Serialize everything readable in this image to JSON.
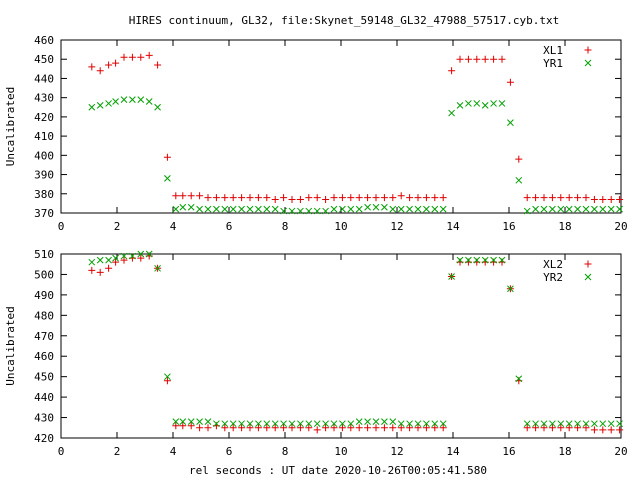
{
  "title": "HIRES continuum, GL32, file:Skynet_59148_GL32_47988_57517.cyb.txt",
  "xlabel": "rel seconds : UT date 2020-10-26T00:05:41.580",
  "colors": {
    "series1": "#e00000",
    "series2": "#00a000",
    "axis": "#000000"
  },
  "chart_data": [
    {
      "type": "scatter",
      "ylabel": "Uncalibrated",
      "xlim": [
        0,
        20
      ],
      "ylim": [
        370,
        460
      ],
      "xticks": [
        0,
        2,
        4,
        6,
        8,
        10,
        12,
        14,
        16,
        18,
        20
      ],
      "yticks": [
        370,
        380,
        390,
        400,
        410,
        420,
        430,
        440,
        450,
        460
      ],
      "legend_position": "top-right",
      "grid": false,
      "series": [
        {
          "name": "XL1",
          "marker": "+",
          "x": [
            1.1,
            1.4,
            1.7,
            1.95,
            2.25,
            2.55,
            2.85,
            3.15,
            3.45,
            3.8,
            4.1,
            4.35,
            4.65,
            4.95,
            5.25,
            5.55,
            5.85,
            6.15,
            6.45,
            6.75,
            7.05,
            7.35,
            7.65,
            7.95,
            8.25,
            8.55,
            8.85,
            9.15,
            9.45,
            9.75,
            10.05,
            10.35,
            10.65,
            10.95,
            11.25,
            11.55,
            11.85,
            12.15,
            12.45,
            12.75,
            13.05,
            13.35,
            13.65,
            13.95,
            14.25,
            14.55,
            14.85,
            15.15,
            15.45,
            15.75,
            16.05,
            16.35,
            16.65,
            16.95,
            17.25,
            17.55,
            17.85,
            18.15,
            18.45,
            18.75,
            19.05,
            19.35,
            19.65,
            19.95
          ],
          "y": [
            446,
            444,
            447,
            448,
            451,
            451,
            451,
            452,
            447,
            399,
            379,
            379,
            379,
            379,
            378,
            378,
            378,
            378,
            378,
            378,
            378,
            378,
            377,
            378,
            377,
            377,
            378,
            378,
            377,
            378,
            378,
            378,
            378,
            378,
            378,
            378,
            378,
            379,
            378,
            378,
            378,
            378,
            378,
            444,
            450,
            450,
            450,
            450,
            450,
            450,
            438,
            398,
            378,
            378,
            378,
            378,
            378,
            378,
            378,
            378,
            377,
            377,
            377,
            377
          ]
        },
        {
          "name": "YR1",
          "marker": "x",
          "x": [
            1.1,
            1.4,
            1.7,
            1.95,
            2.25,
            2.55,
            2.85,
            3.15,
            3.45,
            3.8,
            4.1,
            4.35,
            4.65,
            4.95,
            5.25,
            5.55,
            5.85,
            6.15,
            6.45,
            6.75,
            7.05,
            7.35,
            7.65,
            7.95,
            8.25,
            8.55,
            8.85,
            9.15,
            9.45,
            9.75,
            10.05,
            10.35,
            10.65,
            10.95,
            11.25,
            11.55,
            11.85,
            12.15,
            12.45,
            12.75,
            13.05,
            13.35,
            13.65,
            13.95,
            14.25,
            14.55,
            14.85,
            15.15,
            15.45,
            15.75,
            16.05,
            16.35,
            16.65,
            16.95,
            17.25,
            17.55,
            17.85,
            18.15,
            18.45,
            18.75,
            19.05,
            19.35,
            19.65,
            19.95
          ],
          "y": [
            425,
            426,
            427,
            428,
            429,
            429,
            429,
            428,
            425,
            388,
            372,
            373,
            373,
            372,
            372,
            372,
            372,
            372,
            372,
            372,
            372,
            372,
            372,
            371,
            371,
            371,
            371,
            371,
            371,
            372,
            372,
            372,
            372,
            373,
            373,
            373,
            372,
            372,
            372,
            372,
            372,
            372,
            372,
            422,
            426,
            427,
            427,
            426,
            427,
            427,
            417,
            387,
            371,
            372,
            372,
            372,
            372,
            372,
            372,
            372,
            372,
            372,
            372,
            372
          ]
        }
      ]
    },
    {
      "type": "scatter",
      "ylabel": "Uncalibrated",
      "xlim": [
        0,
        20
      ],
      "ylim": [
        420,
        510
      ],
      "xticks": [
        0,
        2,
        4,
        6,
        8,
        10,
        12,
        14,
        16,
        18,
        20
      ],
      "yticks": [
        420,
        430,
        440,
        450,
        460,
        470,
        480,
        490,
        500,
        510
      ],
      "legend_position": "top-right",
      "grid": false,
      "series": [
        {
          "name": "XL2",
          "marker": "+",
          "x": [
            1.1,
            1.4,
            1.7,
            1.95,
            2.25,
            2.55,
            2.85,
            3.15,
            3.45,
            3.8,
            4.1,
            4.35,
            4.65,
            4.95,
            5.25,
            5.55,
            5.85,
            6.15,
            6.45,
            6.75,
            7.05,
            7.35,
            7.65,
            7.95,
            8.25,
            8.55,
            8.85,
            9.15,
            9.45,
            9.75,
            10.05,
            10.35,
            10.65,
            10.95,
            11.25,
            11.55,
            11.85,
            12.15,
            12.45,
            12.75,
            13.05,
            13.35,
            13.65,
            13.95,
            14.25,
            14.55,
            14.85,
            15.15,
            15.45,
            15.75,
            16.05,
            16.35,
            16.65,
            16.95,
            17.25,
            17.55,
            17.85,
            18.15,
            18.45,
            18.75,
            19.05,
            19.35,
            19.65,
            19.95
          ],
          "y": [
            502,
            501,
            503,
            506,
            507,
            508,
            508,
            509,
            503,
            448,
            426,
            426,
            426,
            425,
            425,
            426,
            425,
            425,
            425,
            425,
            425,
            425,
            425,
            425,
            425,
            425,
            425,
            424,
            425,
            425,
            425,
            425,
            425,
            425,
            425,
            425,
            425,
            425,
            425,
            425,
            425,
            425,
            425,
            499,
            506,
            506,
            506,
            506,
            506,
            506,
            493,
            448,
            425,
            425,
            425,
            425,
            425,
            425,
            425,
            425,
            424,
            424,
            424,
            424
          ]
        },
        {
          "name": "YR2",
          "marker": "x",
          "x": [
            1.1,
            1.4,
            1.7,
            1.95,
            2.25,
            2.55,
            2.85,
            3.15,
            3.45,
            3.8,
            4.1,
            4.35,
            4.65,
            4.95,
            5.25,
            5.55,
            5.85,
            6.15,
            6.45,
            6.75,
            7.05,
            7.35,
            7.65,
            7.95,
            8.25,
            8.55,
            8.85,
            9.15,
            9.45,
            9.75,
            10.05,
            10.35,
            10.65,
            10.95,
            11.25,
            11.55,
            11.85,
            12.15,
            12.45,
            12.75,
            13.05,
            13.35,
            13.65,
            13.95,
            14.25,
            14.55,
            14.85,
            15.15,
            15.45,
            15.75,
            16.05,
            16.35,
            16.65,
            16.95,
            17.25,
            17.55,
            17.85,
            18.15,
            18.45,
            18.75,
            19.05,
            19.35,
            19.65,
            19.95
          ],
          "y": [
            506,
            507,
            507,
            508,
            509,
            509,
            510,
            510,
            503,
            450,
            428,
            428,
            428,
            428,
            428,
            427,
            427,
            427,
            427,
            427,
            427,
            427,
            427,
            427,
            427,
            427,
            427,
            427,
            427,
            427,
            427,
            427,
            428,
            428,
            428,
            428,
            428,
            427,
            427,
            427,
            427,
            427,
            427,
            499,
            507,
            507,
            507,
            507,
            507,
            507,
            493,
            449,
            427,
            427,
            427,
            427,
            427,
            427,
            427,
            427,
            427,
            427,
            427,
            427
          ]
        }
      ]
    }
  ]
}
